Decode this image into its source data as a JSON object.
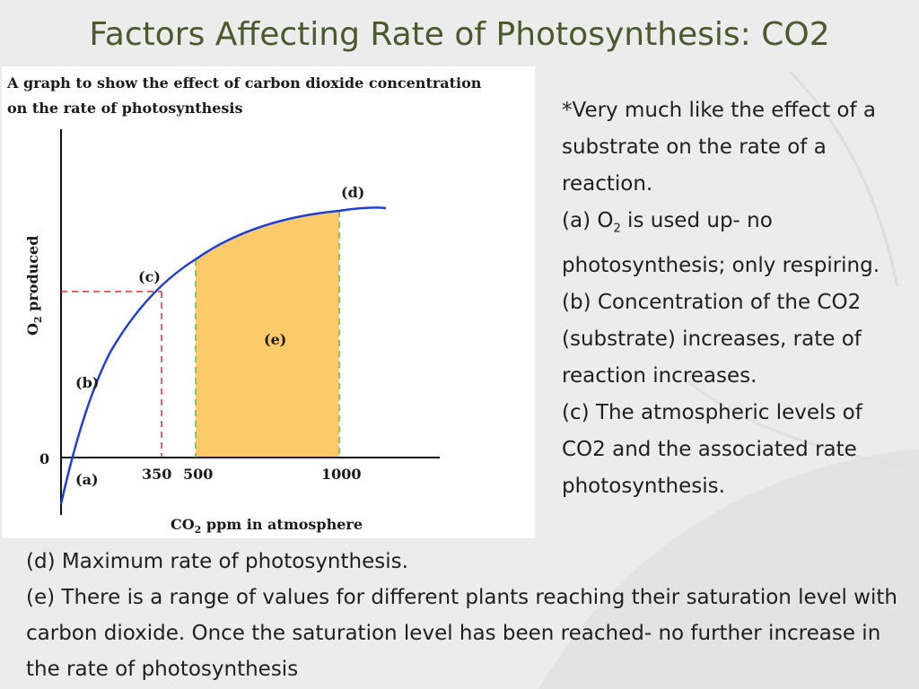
{
  "title": "Factors Affecting Rate of Photosynthesis:   CO2",
  "graph": {
    "heading_line1": "A graph to show the effect of carbon dioxide concentration",
    "heading_line2": "on the rate  of photosynthesis",
    "y_axis_label": "O",
    "y_axis_sub": "2",
    "y_axis_label_rest": " produced",
    "x_axis_label_prefix": "CO",
    "x_axis_sub": "2",
    "x_axis_label_rest": "  ppm in atmosphere",
    "tick_zero": "0",
    "tick_350": "350",
    "tick_500": "500",
    "tick_1000": "1000",
    "label_a": "(a)",
    "label_b": "(b)",
    "label_c": "(c)",
    "label_d": "(d)",
    "label_e": "(e)",
    "fill_color": "#fdca6a",
    "curve_color": "#1e3fd6",
    "dash_red": "#e03030",
    "dash_green": "#5cc43c"
  },
  "side_text": {
    "line1": "*Very much like the effect of a substrate on the rate of a reaction.",
    "a_prefix": "(a) O",
    "a_sub": "2",
    "a_rest": " is used up- no photosynthesis; only respiring.",
    "b": "(b) Concentration of the CO2 (substrate) increases, rate of reaction increases.",
    "c": "(c) The atmospheric levels of CO2 and the associated rate photosynthesis."
  },
  "bottom_text": {
    "d": "(d) Maximum rate of photosynthesis.",
    "e": "(e) There is a range of values for different plants reaching their saturation level with carbon dioxide. Once the saturation level has been reached- no further increase in the rate of photosynthesis"
  }
}
